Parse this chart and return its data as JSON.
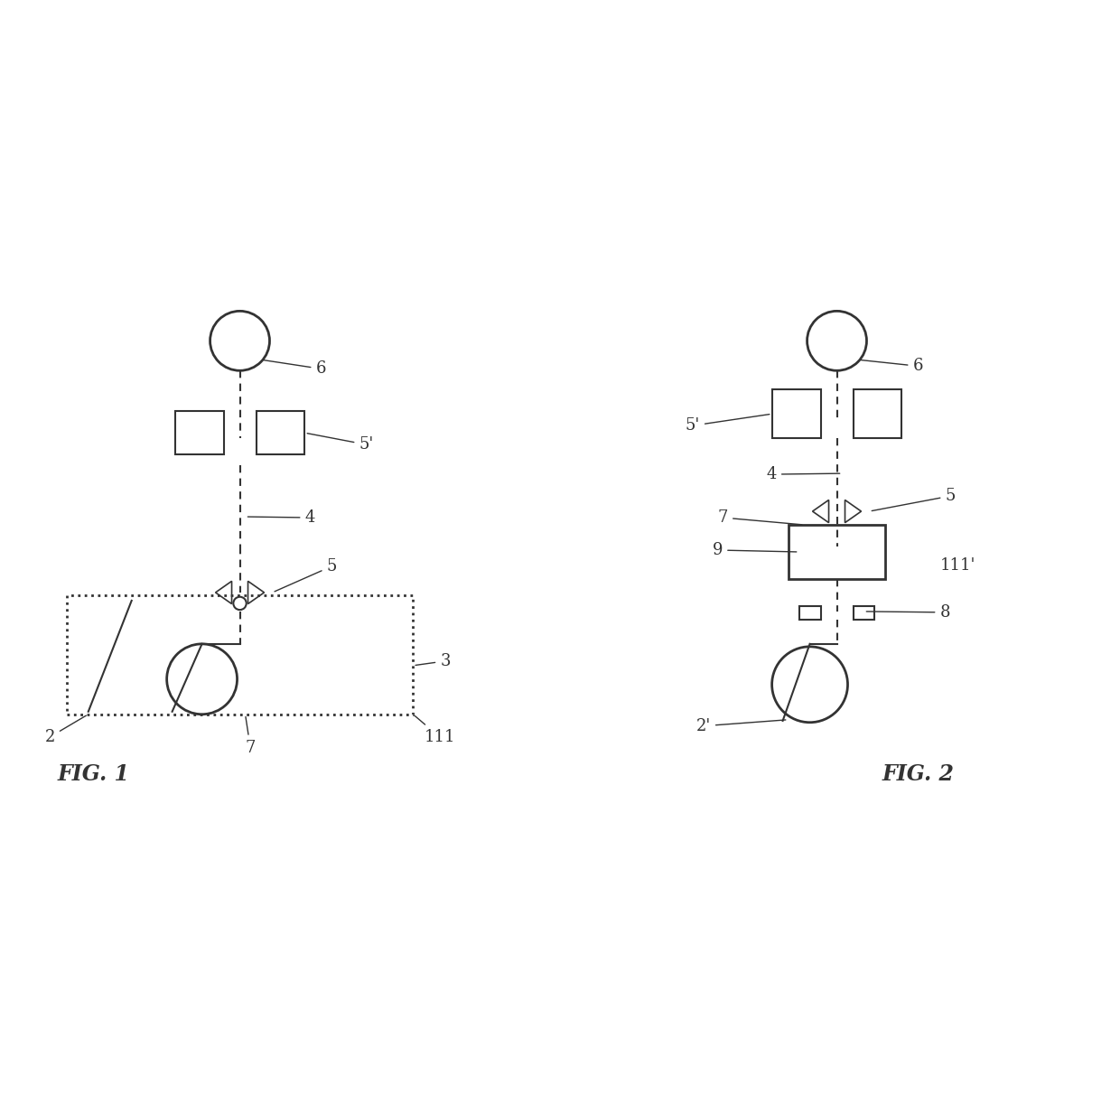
{
  "bg_color": "#ffffff",
  "line_color": "#333333",
  "fig1_label": "FIG. 1",
  "fig2_label": "FIG. 2",
  "label_fontsize": 16,
  "annotation_fontsize": 13
}
